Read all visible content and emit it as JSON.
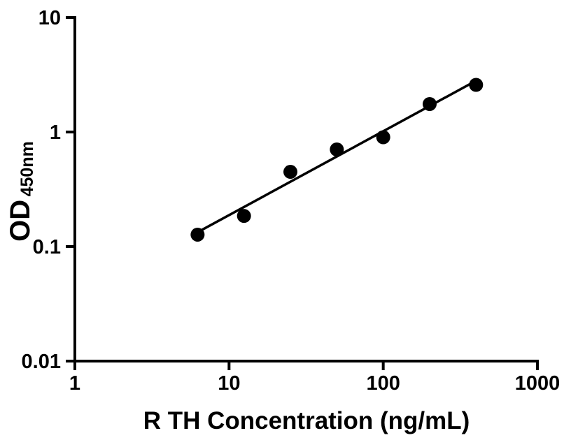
{
  "chart_data": {
    "type": "scatter",
    "title": "",
    "xlabel": "R TH Concentration (ng/mL)",
    "ylabel": "OD",
    "ylabel_subscript": "450nm",
    "x_scale": "log",
    "y_scale": "log",
    "xlim": [
      1,
      1000
    ],
    "ylim": [
      0.01,
      10
    ],
    "x_ticks": [
      1,
      10,
      100,
      1000
    ],
    "x_tick_labels": [
      "1",
      "10",
      "100",
      "1000"
    ],
    "y_ticks": [
      10,
      1,
      0.1,
      0.01
    ],
    "y_tick_labels": [
      "10",
      "1",
      "0.1",
      "0.01"
    ],
    "grid": false,
    "legend": null,
    "points": [
      {
        "x": 6.25,
        "y": 0.127
      },
      {
        "x": 12.5,
        "y": 0.185
      },
      {
        "x": 25,
        "y": 0.449
      },
      {
        "x": 50,
        "y": 0.704
      },
      {
        "x": 100,
        "y": 0.9
      },
      {
        "x": 200,
        "y": 1.754
      },
      {
        "x": 400,
        "y": 2.58
      }
    ],
    "fit_line": {
      "x1": 6.55,
      "y1": 0.138,
      "x2": 390,
      "y2": 2.75
    },
    "marker": {
      "shape": "circle",
      "radius": 10,
      "color": "#000000"
    },
    "colors": {
      "axis": "#000000",
      "text": "#000000",
      "marker": "#000000",
      "line": "#000000",
      "background": "#ffffff"
    }
  }
}
